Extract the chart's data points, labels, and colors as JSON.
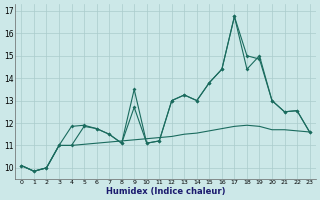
{
  "xlabel": "Humidex (Indice chaleur)",
  "xlim": [
    -0.5,
    23.5
  ],
  "ylim": [
    9.5,
    17.3
  ],
  "yticks": [
    10,
    11,
    12,
    13,
    14,
    15,
    16,
    17
  ],
  "xticks": [
    0,
    1,
    2,
    3,
    4,
    5,
    6,
    7,
    8,
    9,
    10,
    11,
    12,
    13,
    14,
    15,
    16,
    17,
    18,
    19,
    20,
    21,
    22,
    23
  ],
  "bg_color": "#cce8e8",
  "grid_color": "#aacccc",
  "line_color": "#1a6b5e",
  "line1_x": [
    0,
    1,
    2,
    3,
    4,
    5,
    6,
    7,
    8,
    9,
    10,
    11,
    12,
    13,
    14,
    15,
    16,
    17,
    18,
    19,
    20,
    21,
    22,
    23
  ],
  "line1_y": [
    10.1,
    9.85,
    10.0,
    11.0,
    11.85,
    11.9,
    11.75,
    11.5,
    11.1,
    13.5,
    11.1,
    11.2,
    13.0,
    13.25,
    13.0,
    13.8,
    14.4,
    16.75,
    15.0,
    14.85,
    13.0,
    12.5,
    12.55,
    11.6
  ],
  "line2_x": [
    0,
    1,
    2,
    3,
    4,
    5,
    6,
    7,
    8,
    9,
    10,
    11,
    12,
    13,
    14,
    15,
    16,
    17,
    18,
    19,
    20,
    21,
    22,
    23
  ],
  "line2_y": [
    10.1,
    9.85,
    10.0,
    11.0,
    11.0,
    11.85,
    11.75,
    11.5,
    11.1,
    12.7,
    11.1,
    11.2,
    13.0,
    13.25,
    13.0,
    13.8,
    14.4,
    16.75,
    14.4,
    15.0,
    13.0,
    12.5,
    12.55,
    11.6
  ],
  "line3_x": [
    0,
    1,
    2,
    3,
    4,
    5,
    6,
    7,
    8,
    9,
    10,
    11,
    12,
    13,
    14,
    15,
    16,
    17,
    18,
    19,
    20,
    21,
    22,
    23
  ],
  "line3_y": [
    10.1,
    9.85,
    10.0,
    11.0,
    11.0,
    11.05,
    11.1,
    11.15,
    11.2,
    11.25,
    11.3,
    11.35,
    11.4,
    11.5,
    11.55,
    11.65,
    11.75,
    11.85,
    11.9,
    11.85,
    11.7,
    11.7,
    11.65,
    11.6
  ]
}
